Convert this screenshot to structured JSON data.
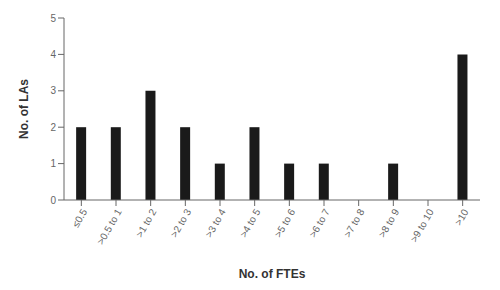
{
  "chart_data": {
    "type": "bar",
    "categories": [
      "≤0.5",
      ">0.5 to 1",
      ">1 to 2",
      ">2 to 3",
      ">3 to 4",
      ">4 to 5",
      ">5 to 6",
      ">6 to 7",
      ">7 to 8",
      ">8 to 9",
      ">9 to 10",
      ">10"
    ],
    "values": [
      2,
      2,
      3,
      2,
      1,
      2,
      1,
      1,
      0,
      1,
      0,
      4
    ],
    "color": "#1a1a1a",
    "xlabel": "No. of FTEs",
    "ylabel": "No. of LAs",
    "ylim": [
      0,
      5
    ],
    "yticks": [
      0,
      1,
      2,
      3,
      4,
      5
    ],
    "grid": false
  }
}
